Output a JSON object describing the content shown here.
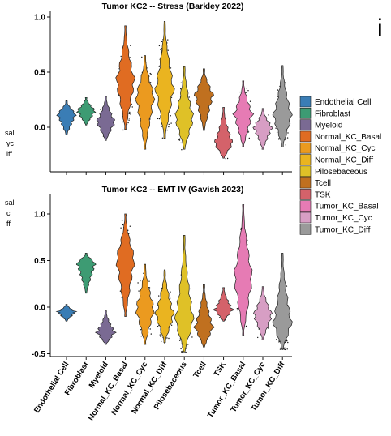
{
  "cutoff_text": {
    "left_labels": [
      "sal",
      "yc",
      "iff",
      "sal",
      "c",
      "ff"
    ],
    "right_glyph": "i"
  },
  "palette": {
    "Endothelial Cell": "#3a7db5",
    "Fibroblast": "#3d9b73",
    "Myeloid": "#7a6a93",
    "Normal_KC_Basal": "#e06c22",
    "Normal_KC_Cyc": "#eb9a1f",
    "Normal_KC_Diff": "#eab420",
    "Pilosebaceous": "#dfc127",
    "Tcell": "#c0701f",
    "TSK": "#d4626a",
    "Tumor_KC_Basal": "#e67bb4",
    "Tumor_KC_Cyc": "#d79ec4",
    "Tumor_KC_Diff": "#9a9a9a"
  },
  "legend": {
    "items": [
      "Endothelial Cell",
      "Fibroblast",
      "Myeloid",
      "Normal_KC_Basal",
      "Normal_KC_Cyc",
      "Normal_KC_Diff",
      "Pilosebaceous",
      "Tcell",
      "TSK",
      "Tumor_KC_Basal",
      "Tumor_KC_Cyc",
      "Tumor_KC_Diff"
    ]
  },
  "chart_data": [
    {
      "type": "violin",
      "title": "Tumor KC2 -- Stress (Barkley 2022)",
      "categories": [
        "Endothelial Cell",
        "Fibroblast",
        "Myeloid",
        "Normal_KC_Basal",
        "Normal_KC_Cyc",
        "Normal_KC_Diff",
        "Pilosebaceous",
        "Tcell",
        "TSK",
        "Tumor_KC_Basal",
        "Tumor_KC_Cyc",
        "Tumor_KC_Diff"
      ],
      "yticks": [
        "0.0",
        "0.5",
        "1.0"
      ],
      "ytick_values": [
        0.0,
        0.5,
        1.0
      ],
      "ylim": [
        -0.25,
        1.05
      ],
      "xtick_labels_shown": false,
      "violins": [
        {
          "category": "Endothelial Cell",
          "min": -0.07,
          "max": 0.24,
          "peak": 0.12,
          "n_points": 0
        },
        {
          "category": "Fibroblast",
          "min": 0.02,
          "max": 0.27,
          "peak": 0.15,
          "n_points": 0
        },
        {
          "category": "Myeloid",
          "min": -0.12,
          "max": 0.28,
          "peak": 0.05,
          "n_points": 30
        },
        {
          "category": "Normal_KC_Basal",
          "min": -0.02,
          "max": 0.92,
          "peak": 0.42,
          "n_points": 220
        },
        {
          "category": "Normal_KC_Cyc",
          "min": -0.2,
          "max": 0.65,
          "peak": 0.28,
          "n_points": 140
        },
        {
          "category": "Normal_KC_Diff",
          "min": -0.1,
          "max": 0.96,
          "peak": 0.35,
          "n_points": 300
        },
        {
          "category": "Pilosebaceous",
          "min": -0.2,
          "max": 0.55,
          "peak": 0.08,
          "n_points": 90
        },
        {
          "category": "Tcell",
          "min": -0.03,
          "max": 0.53,
          "peak": 0.3,
          "n_points": 0
        },
        {
          "category": "TSK",
          "min": -0.28,
          "max": 0.18,
          "peak": -0.15,
          "n_points": 25
        },
        {
          "category": "Tumor_KC_Basal",
          "min": -0.18,
          "max": 0.42,
          "peak": 0.12,
          "n_points": 90
        },
        {
          "category": "Tumor_KC_Cyc",
          "min": -0.2,
          "max": 0.17,
          "peak": 0.0,
          "n_points": 40
        },
        {
          "category": "Tumor_KC_Diff",
          "min": -0.18,
          "max": 0.56,
          "peak": 0.1,
          "n_points": 130
        }
      ]
    },
    {
      "type": "violin",
      "title": "Tumor KC2 -- EMT IV (Gavish 2023)",
      "categories": [
        "Endothelial Cell",
        "Fibroblast",
        "Myeloid",
        "Normal_KC_Basal",
        "Normal_KC_Cyc",
        "Normal_KC_Diff",
        "Pilosebaceous",
        "Tcell",
        "TSK",
        "Tumor_KC_Basal",
        "Tumor_KC_Cyc",
        "Tumor_KC_Diff"
      ],
      "yticks": [
        "-0.5",
        "0.0",
        "0.5",
        "1.0"
      ],
      "ytick_values": [
        -0.5,
        0.0,
        0.5,
        1.0
      ],
      "ylim": [
        -0.55,
        1.1
      ],
      "xtick_labels_shown": true,
      "violins": [
        {
          "category": "Endothelial Cell",
          "min": -0.15,
          "max": 0.03,
          "peak": -0.05,
          "n_points": 0
        },
        {
          "category": "Fibroblast",
          "min": 0.15,
          "max": 0.58,
          "peak": 0.48,
          "n_points": 0
        },
        {
          "category": "Myeloid",
          "min": -0.4,
          "max": -0.04,
          "peak": -0.27,
          "n_points": 20
        },
        {
          "category": "Normal_KC_Basal",
          "min": -0.1,
          "max": 1.0,
          "peak": 0.52,
          "n_points": 200
        },
        {
          "category": "Normal_KC_Cyc",
          "min": -0.4,
          "max": 0.46,
          "peak": -0.02,
          "n_points": 120
        },
        {
          "category": "Normal_KC_Diff",
          "min": -0.38,
          "max": 0.4,
          "peak": -0.08,
          "n_points": 280
        },
        {
          "category": "Pilosebaceous",
          "min": -0.48,
          "max": 0.77,
          "peak": -0.15,
          "n_points": 80
        },
        {
          "category": "Tcell",
          "min": -0.43,
          "max": 0.24,
          "peak": -0.22,
          "n_points": 0
        },
        {
          "category": "TSK",
          "min": -0.15,
          "max": 0.21,
          "peak": -0.03,
          "n_points": 15
        },
        {
          "category": "Tumor_KC_Basal",
          "min": -0.3,
          "max": 1.1,
          "peak": 0.32,
          "n_points": 110
        },
        {
          "category": "Tumor_KC_Cyc",
          "min": -0.35,
          "max": 0.22,
          "peak": -0.08,
          "n_points": 40
        },
        {
          "category": "Tumor_KC_Diff",
          "min": -0.45,
          "max": 0.58,
          "peak": -0.18,
          "n_points": 160
        }
      ]
    }
  ]
}
